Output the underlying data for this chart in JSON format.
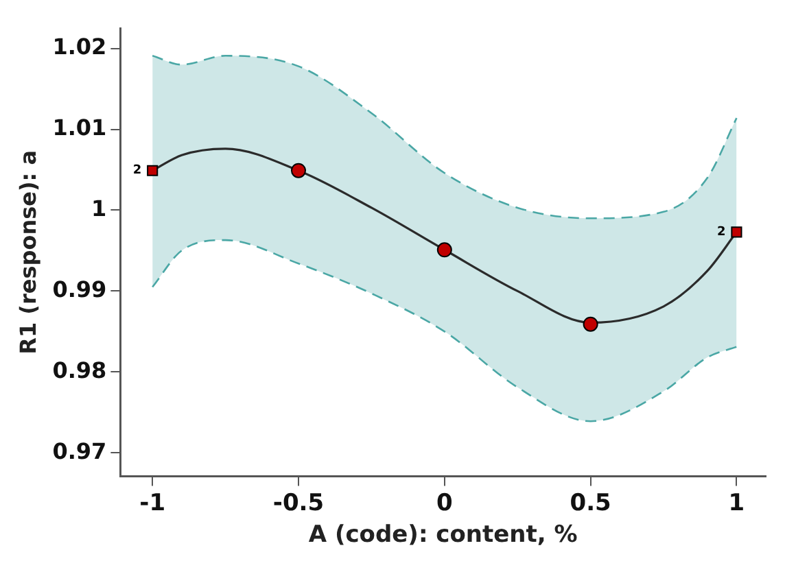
{
  "chart_data": {
    "type": "scatter",
    "xlabel": "A (code): content, %",
    "ylabel": "R1 (response): a",
    "xlim": [
      -1.11,
      1.1
    ],
    "xticks": [
      -1,
      -0.5,
      0,
      0.5,
      1
    ],
    "ylim": [
      0.9671,
      1.0225
    ],
    "yticks": [
      {
        "value": 1.02,
        "label": "1.02"
      },
      {
        "value": 1.01,
        "label": "1.01"
      },
      {
        "value": 1,
        "label": "1"
      },
      {
        "value": 0.99,
        "label": "0.99"
      },
      {
        "value": 0.98,
        "label": "0.98"
      },
      {
        "value": 0.97,
        "label": "0.97"
      }
    ],
    "grid": false,
    "legend": false,
    "series": [
      {
        "type": "line",
        "color": "#2b2b2b",
        "marker": "none",
        "line_style": "solid",
        "x": [
          -1,
          -0.9,
          -0.75,
          -0.5,
          -0.25,
          0,
          0.25,
          0.5,
          0.75,
          0.9,
          1
        ],
        "values": [
          1.0049,
          1.0068,
          1.0076,
          1.0049,
          1.0003,
          0.9951,
          0.99,
          0.9861,
          0.9881,
          0.9925,
          0.9973
        ],
        "lower": [
          0.9905,
          0.995,
          0.9963,
          0.9934,
          0.9897,
          0.985,
          0.9781,
          0.9739,
          0.9776,
          0.9818,
          0.9831
        ],
        "upper": [
          1.0191,
          1.018,
          1.0191,
          1.0178,
          1.012,
          1.0046,
          1.0003,
          0.999,
          0.9998,
          1.004,
          1.0114
        ]
      },
      {
        "type": "line",
        "color": "#4aa7a5",
        "marker": "none",
        "line_style": "dashed",
        "x": [
          -1,
          -0.9,
          -0.75,
          -0.5,
          -0.25,
          0,
          0.25,
          0.5,
          0.75,
          0.9,
          1
        ],
        "values": [
          0.9905,
          0.995,
          0.9963,
          0.9934,
          0.9897,
          0.985,
          0.9781,
          0.9739,
          0.9776,
          0.9818,
          0.9831
        ]
      },
      {
        "type": "line",
        "color": "#4aa7a5",
        "marker": "none",
        "line_style": "dashed",
        "x": [
          -1,
          -0.9,
          -0.75,
          -0.5,
          -0.25,
          0,
          0.25,
          0.5,
          0.75,
          0.9,
          1
        ],
        "values": [
          1.0191,
          1.018,
          1.0191,
          1.0178,
          1.012,
          1.0046,
          1.0003,
          0.999,
          0.9998,
          1.004,
          1.0114
        ]
      },
      {
        "color": "#c00000",
        "marker": "circle",
        "x": [
          -0.5,
          0,
          0.5
        ],
        "values": [
          1.0049,
          0.9951,
          0.9859
        ]
      },
      {
        "color": "#c00000",
        "marker": "square",
        "x": [
          -1,
          1
        ],
        "values": [
          1.0049,
          0.9973
        ]
      }
    ],
    "annotations": [
      {
        "text": "2",
        "x": -1,
        "y": 1.0049
      },
      {
        "text": "2",
        "x": 1,
        "y": 0.9973
      }
    ]
  }
}
